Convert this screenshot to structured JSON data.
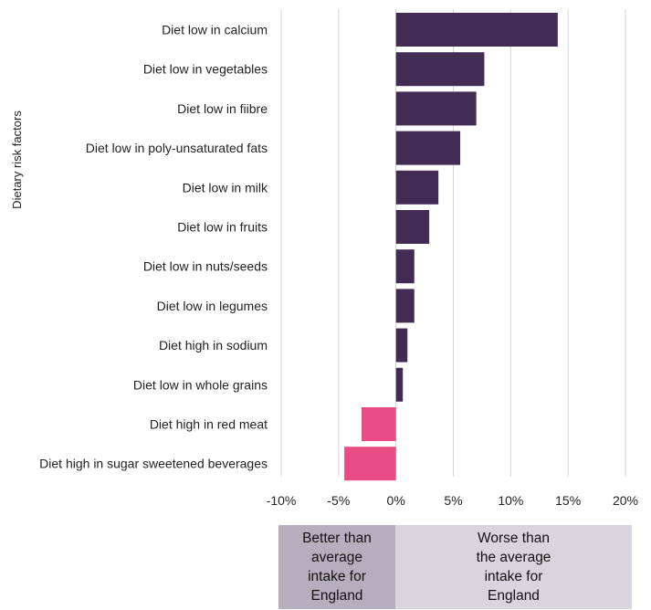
{
  "chart_data": {
    "type": "bar",
    "orientation": "horizontal",
    "ylabel": "Dietary risk factors",
    "xlabel": "",
    "xlim": [
      -10,
      20
    ],
    "x_ticks": [
      -10,
      -5,
      0,
      5,
      10,
      15,
      20
    ],
    "x_tick_labels": [
      "-10%",
      "-5%",
      "0%",
      "5%",
      "10%",
      "15%",
      "20%"
    ],
    "grid": "vertical",
    "categories": [
      "Diet low in calcium",
      "Diet low in vegetables",
      "Diet low in fiibre",
      "Diet low in poly-unsaturated fats",
      "Diet low in milk",
      "Diet low in fruits",
      "Diet low in nuts/seeds",
      "Diet low in legumes",
      "Diet high in sodium",
      "Diet low in whole grains",
      "Diet high in red meat",
      "Diet high in sugar sweetened beverages"
    ],
    "values": [
      14.1,
      7.7,
      7.0,
      5.6,
      3.7,
      2.9,
      1.6,
      1.6,
      1.0,
      0.6,
      -3.0,
      -4.5
    ],
    "colors": {
      "positive": "#432c54",
      "negative": "#e94b84",
      "grid": "#d6d6d6"
    },
    "annotation_bands": [
      {
        "text": "Better than\naverage\nintake for\nEngland",
        "color": "#b7adbf"
      },
      {
        "text": "Worse than\nthe average\nintake for\nEngland",
        "color": "#d9d5df"
      }
    ]
  }
}
